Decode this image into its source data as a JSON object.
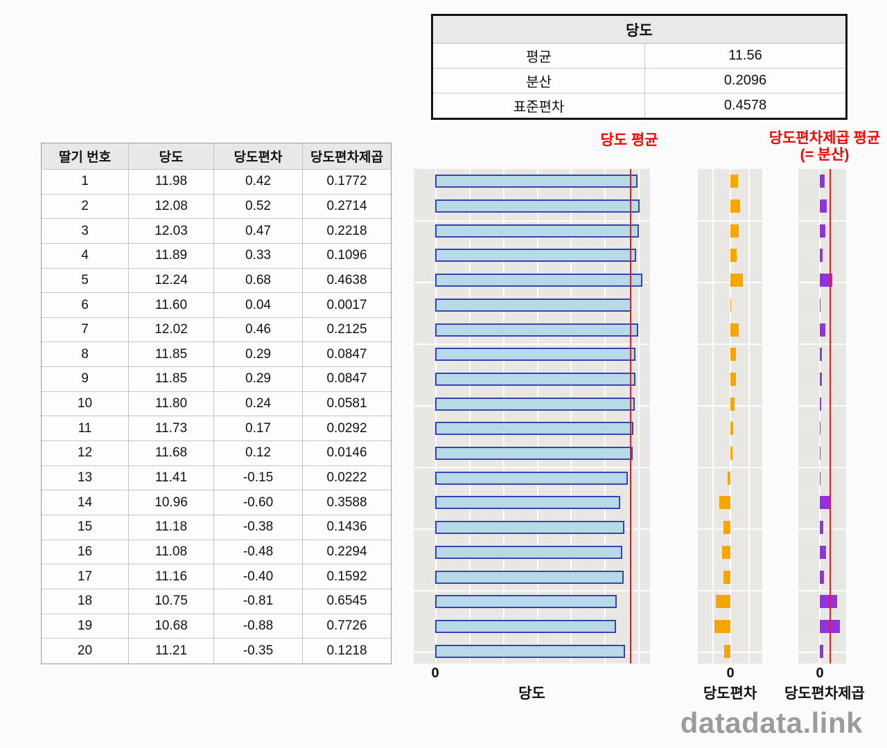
{
  "summary_table": {
    "title": "당도",
    "rows": [
      {
        "label": "평균",
        "value": "11.56"
      },
      {
        "label": "분산",
        "value": "0.2096"
      },
      {
        "label": "표준편차",
        "value": "0.4578"
      }
    ]
  },
  "data_table": {
    "headers": [
      "딸기 번호",
      "당도",
      "당도편차",
      "당도편차제곱"
    ],
    "rows": [
      [
        "1",
        "11.98",
        "0.42",
        "0.1772"
      ],
      [
        "2",
        "12.08",
        "0.52",
        "0.2714"
      ],
      [
        "3",
        "12.03",
        "0.47",
        "0.2218"
      ],
      [
        "4",
        "11.89",
        "0.33",
        "0.1096"
      ],
      [
        "5",
        "12.24",
        "0.68",
        "0.4638"
      ],
      [
        "6",
        "11.60",
        "0.04",
        "0.0017"
      ],
      [
        "7",
        "12.02",
        "0.46",
        "0.2125"
      ],
      [
        "8",
        "11.85",
        "0.29",
        "0.0847"
      ],
      [
        "9",
        "11.85",
        "0.29",
        "0.0847"
      ],
      [
        "10",
        "11.80",
        "0.24",
        "0.0581"
      ],
      [
        "11",
        "11.73",
        "0.17",
        "0.0292"
      ],
      [
        "12",
        "11.68",
        "0.12",
        "0.0146"
      ],
      [
        "13",
        "11.41",
        "-0.15",
        "0.0222"
      ],
      [
        "14",
        "10.96",
        "-0.60",
        "0.3588"
      ],
      [
        "15",
        "11.18",
        "-0.38",
        "0.1436"
      ],
      [
        "16",
        "11.08",
        "-0.48",
        "0.2294"
      ],
      [
        "17",
        "11.16",
        "-0.40",
        "0.1592"
      ],
      [
        "18",
        "10.75",
        "-0.81",
        "0.6545"
      ],
      [
        "19",
        "10.68",
        "-0.88",
        "0.7726"
      ],
      [
        "20",
        "11.21",
        "-0.35",
        "0.1218"
      ]
    ]
  },
  "labels": {
    "sweetness_mean": "당도 평균",
    "variance_mean_line1": "당도편차제곱 평균",
    "variance_mean_line2": "(= 분산)",
    "zero_tick": "0"
  },
  "chart_data": [
    {
      "type": "bar",
      "orientation": "horizontal",
      "title": "당도",
      "categories": [
        1,
        2,
        3,
        4,
        5,
        6,
        7,
        8,
        9,
        10,
        11,
        12,
        13,
        14,
        15,
        16,
        17,
        18,
        19,
        20
      ],
      "values": [
        11.98,
        12.08,
        12.03,
        11.89,
        12.24,
        11.6,
        12.02,
        11.85,
        11.85,
        11.8,
        11.73,
        11.68,
        11.41,
        10.96,
        11.18,
        11.08,
        11.16,
        10.75,
        10.68,
        11.21
      ],
      "xlim": [
        0,
        12.7
      ],
      "reference_line": {
        "label": "당도 평균",
        "value": 11.56
      },
      "bar_color": "#b7d9e8",
      "bar_border": "#3644b0"
    },
    {
      "type": "bar",
      "orientation": "horizontal",
      "title": "당도편차",
      "categories": [
        1,
        2,
        3,
        4,
        5,
        6,
        7,
        8,
        9,
        10,
        11,
        12,
        13,
        14,
        15,
        16,
        17,
        18,
        19,
        20
      ],
      "values": [
        0.42,
        0.52,
        0.47,
        0.33,
        0.68,
        0.04,
        0.46,
        0.29,
        0.29,
        0.24,
        0.17,
        0.12,
        -0.15,
        -0.6,
        -0.38,
        -0.48,
        -0.4,
        -0.81,
        -0.88,
        -0.35
      ],
      "xlim": [
        -1.1,
        1.1
      ],
      "zero_line": 0,
      "bar_color": "#f7a600"
    },
    {
      "type": "bar",
      "orientation": "horizontal",
      "title": "당도편차제곱",
      "categories": [
        1,
        2,
        3,
        4,
        5,
        6,
        7,
        8,
        9,
        10,
        11,
        12,
        13,
        14,
        15,
        16,
        17,
        18,
        19,
        20
      ],
      "values": [
        0.1772,
        0.2714,
        0.2218,
        0.1096,
        0.4638,
        0.0017,
        0.2125,
        0.0847,
        0.0847,
        0.0581,
        0.0292,
        0.0146,
        0.0222,
        0.3588,
        0.1436,
        0.2294,
        0.1592,
        0.6545,
        0.7726,
        0.1218
      ],
      "xlim": [
        -0.8,
        1.05
      ],
      "reference_line": {
        "label": "당도편차제곱 평균 (= 분산)",
        "value": 0.2096
      },
      "bar_color": "#9331e0"
    }
  ],
  "colors": {
    "mean_line": "#f51818",
    "annotation_red": "#ff0000",
    "panel_bg": "#e9e8e5"
  },
  "watermark": {
    "text": "datadata.link"
  }
}
